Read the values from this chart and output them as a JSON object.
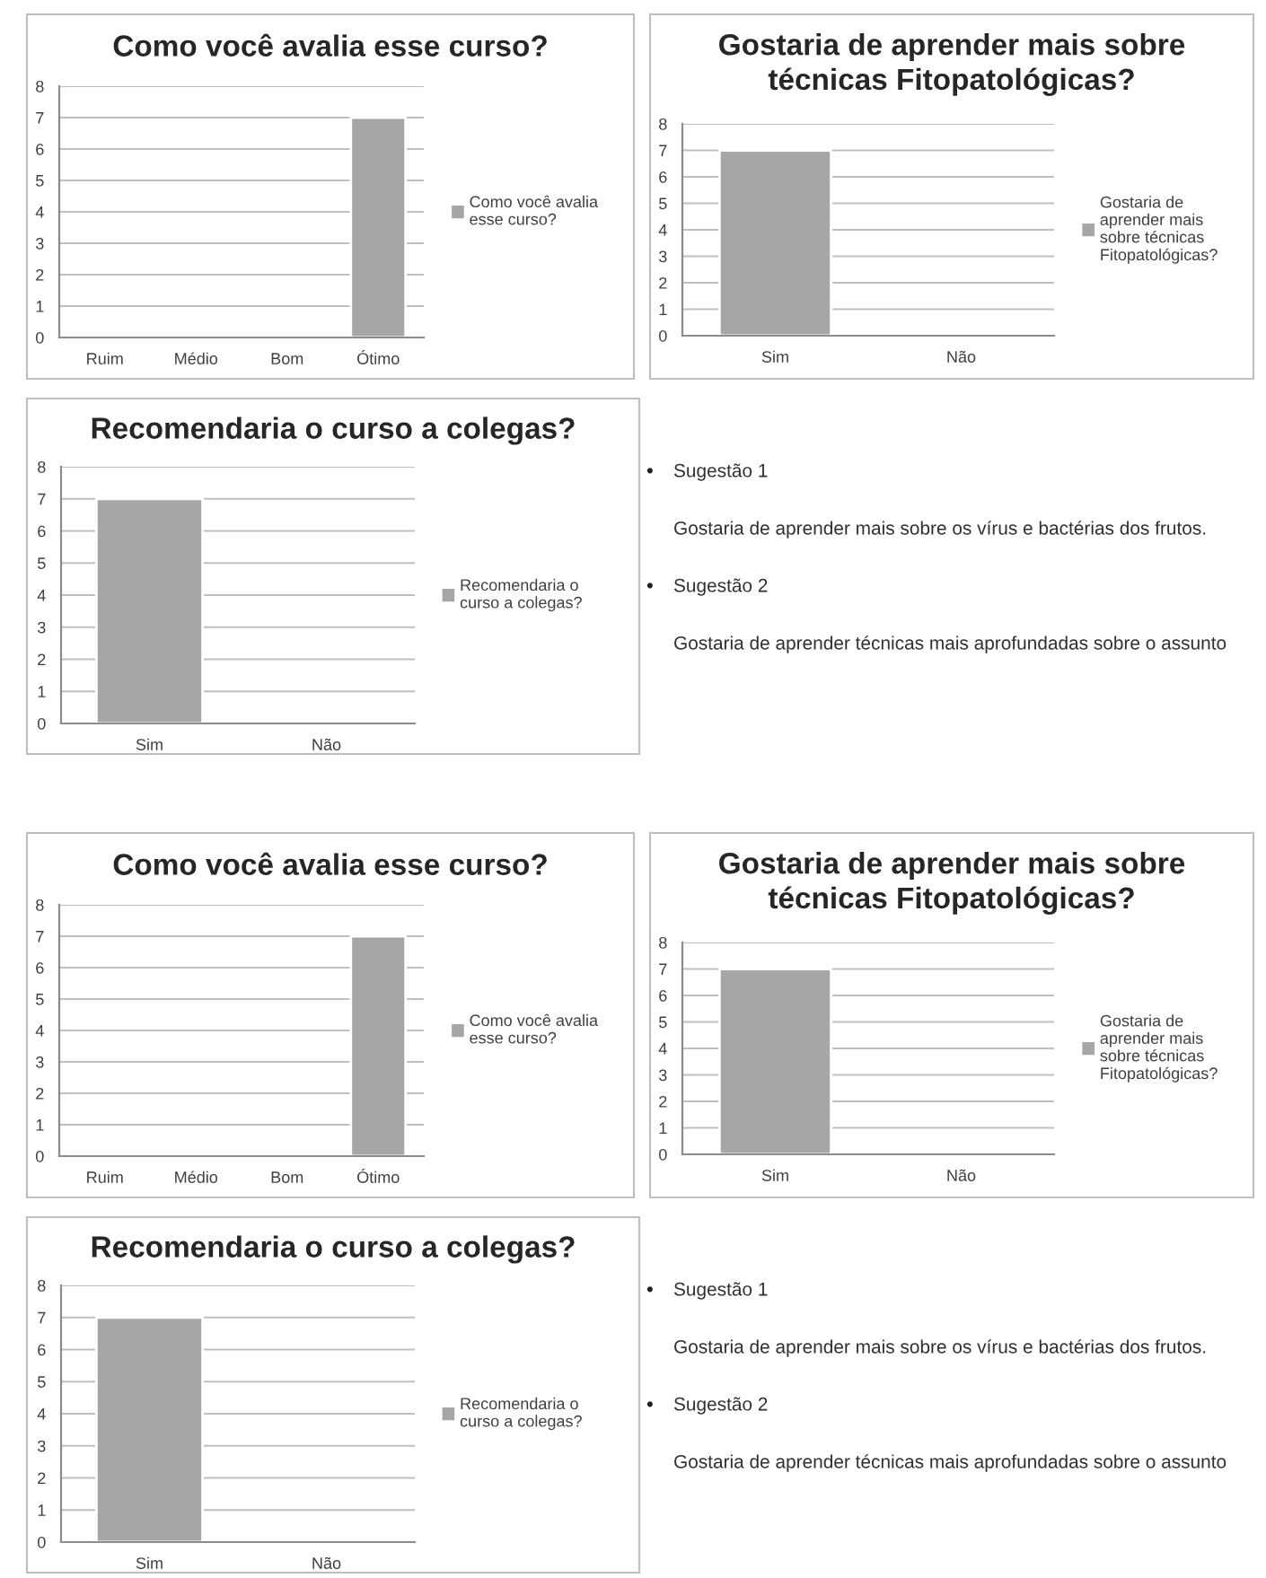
{
  "chart_data": [
    {
      "type": "bar",
      "title": "Como você avalia esse curso?",
      "categories": [
        "Ruim",
        "Médio",
        "Bom",
        "Ótimo"
      ],
      "series": [
        {
          "name": "Como você avalia esse curso?",
          "color": "#a6a6a6",
          "values": [
            null,
            null,
            null,
            7
          ]
        }
      ],
      "ylim": [
        0,
        8
      ],
      "yticks": [
        0,
        1,
        2,
        3,
        4,
        5,
        6,
        7,
        8
      ],
      "grid": "y",
      "legend": "right"
    },
    {
      "type": "bar",
      "title": "Gostaria de aprender mais sobre técnicas Fitopatológicas?",
      "categories": [
        "Sim",
        "Não"
      ],
      "series": [
        {
          "name": "Gostaria de aprender mais sobre técnicas Fitopatológicas?",
          "color": "#a6a6a6",
          "values": [
            7,
            null
          ]
        }
      ],
      "ylim": [
        0,
        8
      ],
      "yticks": [
        0,
        1,
        2,
        3,
        4,
        5,
        6,
        7,
        8
      ],
      "grid": "y",
      "legend": "right"
    },
    {
      "type": "bar",
      "title": "Recomendaria o curso a colegas?",
      "categories": [
        "Sim",
        "Não"
      ],
      "series": [
        {
          "name": "Recomendaria o curso a colegas?",
          "color": "#a6a6a6",
          "values": [
            7,
            null
          ]
        }
      ],
      "ylim": [
        0,
        8
      ],
      "yticks": [
        0,
        1,
        2,
        3,
        4,
        5,
        6,
        7,
        8
      ],
      "grid": "y",
      "legend": "right"
    },
    {
      "type": "other",
      "annotations": [
        "•",
        "Sugestão 1",
        "Gostaria de aprender mais sobre os vírus e bactérias dos frutos.",
        "•",
        "Sugestão 2",
        "Gostaria de aprender técnicas mais aprofundadas sobre o assunto"
      ]
    },
    {
      "type": "bar",
      "title": "Como você avalia esse curso?",
      "categories": [
        "Ruim",
        "Médio",
        "Bom",
        "Ótimo"
      ],
      "series": [
        {
          "name": "Como você avalia esse curso?",
          "color": "#a6a6a6",
          "values": [
            null,
            null,
            null,
            7
          ]
        }
      ],
      "ylim": [
        0,
        8
      ],
      "yticks": [
        0,
        1,
        2,
        3,
        4,
        5,
        6,
        7,
        8
      ],
      "grid": "y",
      "legend": "right"
    },
    {
      "type": "bar",
      "title": "Gostaria de aprender mais sobre técnicas Fitopatológicas?",
      "categories": [
        "Sim",
        "Não"
      ],
      "series": [
        {
          "name": "Gostaria de aprender mais sobre técnicas Fitopatológicas?",
          "color": "#a6a6a6",
          "values": [
            7,
            null
          ]
        }
      ],
      "ylim": [
        0,
        8
      ],
      "yticks": [
        0,
        1,
        2,
        3,
        4,
        5,
        6,
        7,
        8
      ],
      "grid": "y",
      "legend": "right"
    },
    {
      "type": "bar",
      "title": "Recomendaria o curso a colegas?",
      "categories": [
        "Sim",
        "Não"
      ],
      "series": [
        {
          "name": "Recomendaria o curso a colegas?",
          "color": "#a6a6a6",
          "values": [
            7,
            null
          ]
        }
      ],
      "ylim": [
        0,
        8
      ],
      "yticks": [
        0,
        1,
        2,
        3,
        4,
        5,
        6,
        7,
        8
      ],
      "grid": "y",
      "legend": "right"
    },
    {
      "type": "other",
      "annotations": [
        "•",
        "Sugestão 1",
        "Gostaria de aprender mais sobre os vírus e bactérias dos frutos.",
        "•",
        "Sugestão 2",
        "Gostaria de aprender técnicas mais aprofundadas sobre o assunto"
      ]
    }
  ]
}
